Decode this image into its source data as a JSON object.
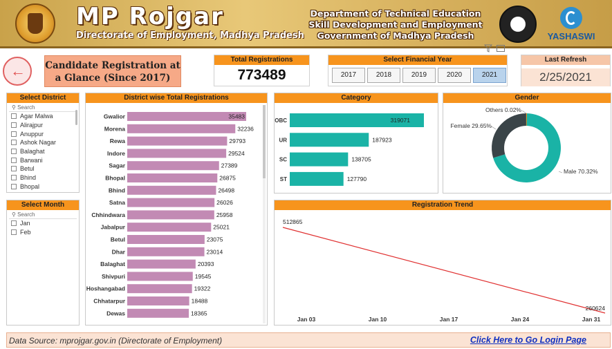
{
  "header": {
    "brand_title": "MP Rojgar",
    "brand_subtitle": "Directorate of Employment, Madhya Pradesh",
    "dept_line1": "Department of Technical Education",
    "dept_line2": "Skill Development and Employment",
    "dept_line3": "Government of Madhya Pradesh",
    "partner_name": "YASHASWI"
  },
  "page_title": "Candidate Registration at a Glance (Since 2017)",
  "total_registrations": {
    "label": "Total Registrations",
    "value": "773489"
  },
  "financial_year": {
    "label": "Select Financial Year",
    "options": [
      "2017",
      "2018",
      "2019",
      "2020",
      "2021"
    ],
    "selected": "2021"
  },
  "last_refresh": {
    "label": "Last Refresh",
    "value": "2/25/2021"
  },
  "district_slicer": {
    "title": "Select District",
    "search_placeholder": "Search",
    "items": [
      "Agar Malwa",
      "Alirajpur",
      "Anuppur",
      "Ashok Nagar",
      "Balaghat",
      "Barwani",
      "Betul",
      "Bhind",
      "Bhopal"
    ]
  },
  "month_slicer": {
    "title": "Select Month",
    "search_placeholder": "Search",
    "items": [
      "Jan",
      "Feb"
    ]
  },
  "footer": {
    "source": "Data Source: mprojgar.gov.in (Directorate of Employment)",
    "login_link": "Click Here to Go Login Page"
  },
  "colors": {
    "accent": "#f7941d",
    "district_bar": "#c28ab4",
    "category_bar": "#1ab3a6",
    "gender_male": "#1ab3a6",
    "gender_female": "#3a4448",
    "gender_other": "#f7941d",
    "trend_line": "#e03030"
  },
  "chart_data": [
    {
      "type": "bar",
      "title": "District wise Total Registrations",
      "orientation": "horizontal",
      "categories": [
        "Gwalior",
        "Morena",
        "Rewa",
        "Indore",
        "Sagar",
        "Bhopal",
        "Bhind",
        "Satna",
        "Chhindwara",
        "Jabalpur",
        "Betul",
        "Dhar",
        "Balaghat",
        "Shivpuri",
        "Hoshangabad",
        "Chhatarpur",
        "Dewas"
      ],
      "values": [
        35483,
        32236,
        29793,
        29524,
        27389,
        26875,
        26498,
        26026,
        25958,
        25021,
        23075,
        23014,
        20393,
        19545,
        19322,
        18488,
        18365
      ]
    },
    {
      "type": "bar",
      "title": "Category",
      "orientation": "horizontal",
      "categories": [
        "OBC",
        "UR",
        "SC",
        "ST"
      ],
      "values": [
        319071,
        187923,
        138705,
        127790
      ]
    },
    {
      "type": "pie",
      "title": "Gender",
      "labels": [
        "Male",
        "Female",
        "Others"
      ],
      "percents": [
        70.32,
        29.65,
        0.02
      ],
      "label_text": [
        "Male 70.32%",
        "Female 29.65%",
        "Others 0.02%"
      ]
    },
    {
      "type": "line",
      "title": "Registration Trend",
      "x_ticks": [
        "Jan 03",
        "Jan 10",
        "Jan 17",
        "Jan 24",
        "Jan 31"
      ],
      "x": [
        "Jan 03",
        "Jan 31"
      ],
      "values": [
        512865,
        260624
      ],
      "value_labels": [
        "512865",
        "260624"
      ],
      "grid": false
    }
  ]
}
